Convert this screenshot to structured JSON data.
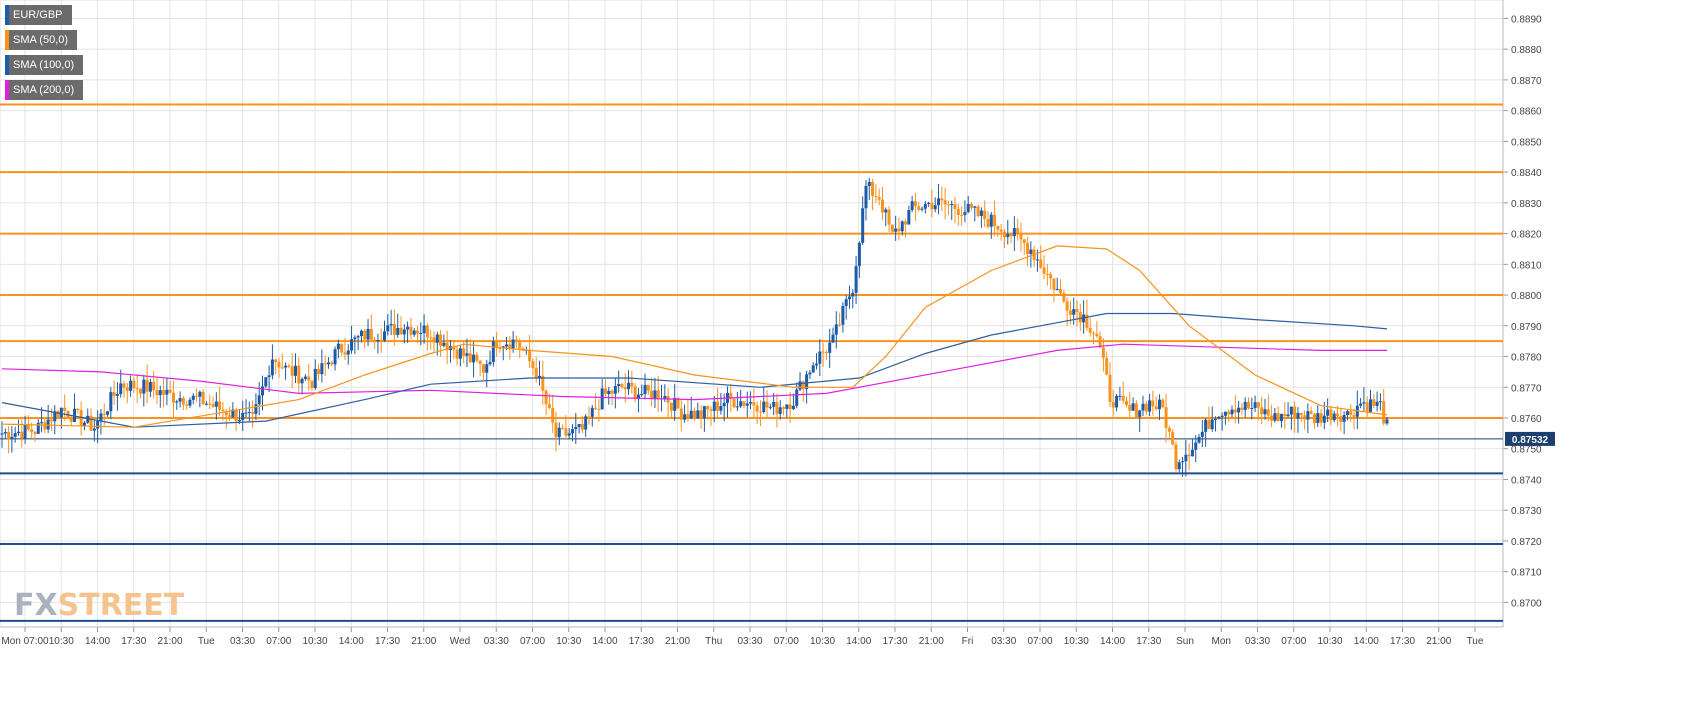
{
  "legend": [
    {
      "label": "EUR/GBP",
      "color": "#1d5aa8"
    },
    {
      "label": "SMA (50,0)",
      "color": "#f7931e"
    },
    {
      "label": "SMA (100,0)",
      "color": "#1d5aa8"
    },
    {
      "label": "SMA (200,0)",
      "color": "#e020e0"
    }
  ],
  "logo": {
    "part1": "FX",
    "part2": "STREET"
  },
  "price_badge": "0.87532",
  "colors": {
    "bull": "#1d5aa8",
    "bear": "#f7931e",
    "sma50": "#f7931e",
    "sma100": "#2d5fa0",
    "sma200": "#e020e0",
    "resistance": "#f7931e",
    "support": "#1d4f8c",
    "grid": "#e4e4e4"
  },
  "chart_data": {
    "type": "candlestick",
    "symbol": "EUR/GBP",
    "ylim": [
      0.8692,
      0.8896
    ],
    "y_ticks": [
      "0.8890",
      "0.8880",
      "0.8870",
      "0.8860",
      "0.8850",
      "0.8840",
      "0.8830",
      "0.8820",
      "0.8810",
      "0.8800",
      "0.8790",
      "0.8780",
      "0.8770",
      "0.8760",
      "0.8750",
      "0.8740",
      "0.8730",
      "0.8720",
      "0.8710",
      "0.8700"
    ],
    "x_ticks": [
      "Mon 07:00",
      "10:30",
      "14:00",
      "17:30",
      "21:00",
      "Tue",
      "03:30",
      "07:00",
      "10:30",
      "14:00",
      "17:30",
      "21:00",
      "Wed",
      "03:30",
      "07:00",
      "10:30",
      "14:00",
      "17:30",
      "21:00",
      "Thu",
      "03:30",
      "07:00",
      "10:30",
      "14:00",
      "17:30",
      "21:00",
      "Fri",
      "03:30",
      "07:00",
      "10:30",
      "14:00",
      "17:30",
      "Sun",
      "Mon",
      "03:30",
      "07:00",
      "10:30",
      "14:00",
      "17:30",
      "21:00",
      "Tue"
    ],
    "current_price": 0.87532,
    "horizontal_levels": [
      {
        "value": 0.8862,
        "kind": "resistance"
      },
      {
        "value": 0.884,
        "kind": "resistance"
      },
      {
        "value": 0.882,
        "kind": "resistance"
      },
      {
        "value": 0.88,
        "kind": "resistance"
      },
      {
        "value": 0.8785,
        "kind": "resistance"
      },
      {
        "value": 0.876,
        "kind": "resistance"
      },
      {
        "value": 0.87532,
        "kind": "current"
      },
      {
        "value": 0.8742,
        "kind": "support"
      },
      {
        "value": 0.8719,
        "kind": "support"
      },
      {
        "value": 0.8694,
        "kind": "support"
      }
    ],
    "anchors": [
      [
        0,
        0.8755
      ],
      [
        10,
        0.8756
      ],
      [
        18,
        0.8763
      ],
      [
        28,
        0.8757
      ],
      [
        36,
        0.8771
      ],
      [
        44,
        0.877
      ],
      [
        52,
        0.8767
      ],
      [
        60,
        0.8766
      ],
      [
        66,
        0.8763
      ],
      [
        76,
        0.8759
      ],
      [
        82,
        0.878
      ],
      [
        86,
        0.8776
      ],
      [
        94,
        0.8772
      ],
      [
        102,
        0.8782
      ],
      [
        110,
        0.8787
      ],
      [
        116,
        0.8788
      ],
      [
        122,
        0.879
      ],
      [
        130,
        0.8788
      ],
      [
        138,
        0.8782
      ],
      [
        146,
        0.8776
      ],
      [
        150,
        0.8785
      ],
      [
        156,
        0.8785
      ],
      [
        162,
        0.8775
      ],
      [
        168,
        0.8754
      ],
      [
        176,
        0.8756
      ],
      [
        182,
        0.8767
      ],
      [
        188,
        0.877
      ],
      [
        194,
        0.8768
      ],
      [
        200,
        0.8768
      ],
      [
        206,
        0.8762
      ],
      [
        212,
        0.8761
      ],
      [
        220,
        0.8766
      ],
      [
        228,
        0.8765
      ],
      [
        234,
        0.8763
      ],
      [
        240,
        0.8766
      ],
      [
        246,
        0.8778
      ],
      [
        252,
        0.8785
      ],
      [
        258,
        0.8803
      ],
      [
        262,
        0.8835
      ],
      [
        266,
        0.8832
      ],
      [
        270,
        0.8819
      ],
      [
        276,
        0.8828
      ],
      [
        282,
        0.883
      ],
      [
        288,
        0.8829
      ],
      [
        294,
        0.8827
      ],
      [
        300,
        0.8824
      ],
      [
        306,
        0.882
      ],
      [
        312,
        0.8815
      ],
      [
        318,
        0.8805
      ],
      [
        322,
        0.8798
      ],
      [
        328,
        0.8793
      ],
      [
        332,
        0.8787
      ],
      [
        336,
        0.8767
      ],
      [
        342,
        0.8762
      ],
      [
        348,
        0.8765
      ],
      [
        352,
        0.8763
      ],
      [
        356,
        0.8746
      ],
      [
        362,
        0.8752
      ],
      [
        368,
        0.8762
      ],
      [
        374,
        0.8764
      ],
      [
        380,
        0.8763
      ],
      [
        386,
        0.876
      ],
      [
        392,
        0.8762
      ],
      [
        398,
        0.876
      ],
      [
        404,
        0.8762
      ],
      [
        408,
        0.8761
      ],
      [
        412,
        0.8765
      ],
      [
        418,
        0.8764
      ],
      [
        420,
        0.8757
      ]
    ],
    "sma50": [
      [
        0,
        0.8758
      ],
      [
        40,
        0.8757
      ],
      [
        90,
        0.8766
      ],
      [
        110,
        0.8774
      ],
      [
        130,
        0.8781
      ],
      [
        140,
        0.8784
      ],
      [
        160,
        0.8782
      ],
      [
        185,
        0.878
      ],
      [
        210,
        0.8774
      ],
      [
        240,
        0.877
      ],
      [
        258,
        0.877
      ],
      [
        268,
        0.878
      ],
      [
        280,
        0.8796
      ],
      [
        300,
        0.8808
      ],
      [
        320,
        0.8816
      ],
      [
        335,
        0.8815
      ],
      [
        345,
        0.8808
      ],
      [
        360,
        0.879
      ],
      [
        380,
        0.8774
      ],
      [
        400,
        0.8764
      ],
      [
        420,
        0.8761
      ]
    ],
    "sma100": [
      [
        0,
        0.8765
      ],
      [
        20,
        0.8761
      ],
      [
        40,
        0.8757
      ],
      [
        80,
        0.8759
      ],
      [
        110,
        0.8766
      ],
      [
        130,
        0.8771
      ],
      [
        160,
        0.8773
      ],
      [
        190,
        0.8773
      ],
      [
        230,
        0.877
      ],
      [
        260,
        0.8773
      ],
      [
        280,
        0.8781
      ],
      [
        300,
        0.8787
      ],
      [
        320,
        0.8791
      ],
      [
        335,
        0.8794
      ],
      [
        355,
        0.8794
      ],
      [
        380,
        0.8792
      ],
      [
        410,
        0.879
      ],
      [
        420,
        0.8789
      ]
    ],
    "sma200": [
      [
        0,
        0.8776
      ],
      [
        30,
        0.8775
      ],
      [
        60,
        0.8772
      ],
      [
        90,
        0.8768
      ],
      [
        130,
        0.8769
      ],
      [
        170,
        0.8767
      ],
      [
        210,
        0.8766
      ],
      [
        250,
        0.8768
      ],
      [
        290,
        0.8776
      ],
      [
        320,
        0.8782
      ],
      [
        340,
        0.8784
      ],
      [
        370,
        0.8783
      ],
      [
        400,
        0.8782
      ],
      [
        420,
        0.8782
      ]
    ]
  }
}
